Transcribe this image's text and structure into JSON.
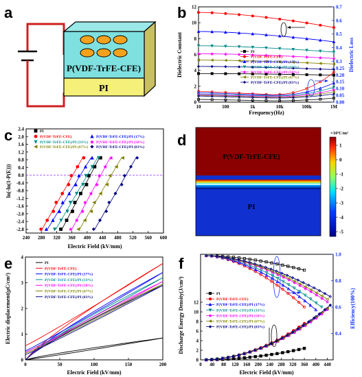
{
  "panels": {
    "a": {
      "label": "a",
      "top_layer": "P(VDF-TrFE-CFE)",
      "bottom_layer": "PI",
      "colors": {
        "top": "#7fe0e0",
        "bottom": "#f5f07a",
        "electrode": "#f4a21e",
        "wire": "#cc2020"
      }
    },
    "b": {
      "label": "b",
      "legend": [
        "PI",
        "P(VDF-TrFE-CFE)",
        "P(VDF-TrFE-CFE)/PI (17%)",
        "P(VDF-TrFE-CFE)/PI (33%)",
        "P(VDF-TrFE-CFE)/PI (50%)",
        "P(VDF-TrFE-CFE)/PI (67%)",
        "P(VDF-TrFE-CFE)/PI (83%)"
      ]
    },
    "c": {
      "label": "c",
      "legend": [
        "PI",
        "P(VDF-TrFE-CFE)",
        "P(VDF-TrFE-CFE)/PI (17%)",
        "P(VDF-TrFE-CFE)/PI (33%)",
        "P(VDF-TrFE-CFE)/PI (50%)",
        "P(VDF-TrFE-CFE)/PI (67%)",
        "P(VDF-TrFE-CFE)/PI (83%)"
      ]
    },
    "d": {
      "label": "d",
      "top_label": "P(VDF-TrFE-CFE)",
      "bottom_label": "PI",
      "colorbar_title": "×10⁷C/m²",
      "colorbar_ticks": [
        "1",
        "0",
        "-1",
        "-2",
        "-3",
        "-4",
        "-5"
      ]
    },
    "e": {
      "label": "e",
      "legend": [
        "PI",
        "P(VDF-TrFE-CFE)",
        "P(VDF-TrFE-CFE)/PI (17%)",
        "P(VDF-TrFE-CFE)/PI (33%)",
        "P(VDF-TrFE-CFE)/PI (50%)",
        "P(VDF-TrFE-CFE)/PI (67%)",
        "P(VDF-TrFE-CFE)/PI (83%)"
      ]
    },
    "f": {
      "label": "f",
      "legend": [
        "PI",
        "P(VDF-TrFE-CFE)",
        "P(VDF-TrFE-CFE)/PI (17%)",
        "P(VDF-TrFE-CFE)/PI (33%)",
        "P(VDF-TrFE-CFE)/PI (50%)",
        "P(VDF-TrFE-CFE)/PI (67%)",
        "P(VDF-TrFE-CFE)/PI (83%)"
      ]
    }
  },
  "series_colors": [
    "#000000",
    "#ff0000",
    "#0000ff",
    "#008b8b",
    "#ff00ff",
    "#808000",
    "#000080"
  ],
  "chart_data": [
    {
      "panel": "b",
      "type": "line",
      "x_scale": "log",
      "xlim": [
        10,
        1000000
      ],
      "xticks": [
        "10",
        "100",
        "1k",
        "10k",
        "100k",
        "1M"
      ],
      "xlabel": "Frequency(Hz)",
      "ylabel": "Dielectric Constant",
      "ylim": [
        0,
        12
      ],
      "yticks": [
        "0",
        "2",
        "4",
        "6",
        "8",
        "10",
        "12"
      ],
      "y2label": "Dielectric Loss",
      "y2lim": [
        0,
        0.7
      ],
      "y2ticks": [
        "0.00",
        "0.05",
        "0.10",
        "0.15",
        "0.20",
        "0.25",
        "0.3",
        "0.4",
        "0.5",
        "0.6",
        "0.7"
      ],
      "constant_series": [
        {
          "name": "PI",
          "y_start": 3.6,
          "y_end": 3.4
        },
        {
          "name": "P(VDF-TrFE-CFE)",
          "y_start": 11.3,
          "y_end": 9.4
        },
        {
          "name": "P(VDF-TrFE-CFE)/PI (17%)",
          "y_start": 8.9,
          "y_end": 7.6
        },
        {
          "name": "P(VDF-TrFE-CFE)/PI (33%)",
          "y_start": 7.1,
          "y_end": 6.3
        },
        {
          "name": "P(VDF-TrFE-CFE)/PI (50%)",
          "y_start": 6.1,
          "y_end": 5.5
        },
        {
          "name": "P(VDF-TrFE-CFE)/PI (67%)",
          "y_start": 5.3,
          "y_end": 4.8
        },
        {
          "name": "P(VDF-TrFE-CFE)/PI (83%)",
          "y_start": 4.5,
          "y_end": 4.1
        }
      ],
      "loss_series": [
        {
          "name": "PI",
          "y_start": 0.02,
          "y_min": 0.01,
          "y_end": 0.03
        },
        {
          "name": "P(VDF-TrFE-CFE)",
          "y_start": 0.08,
          "y_min": 0.055,
          "y_end": 0.22
        },
        {
          "name": "P(VDF-TrFE-CFE)/PI (17%)",
          "y_start": 0.07,
          "y_min": 0.05,
          "y_end": 0.14
        },
        {
          "name": "P(VDF-TrFE-CFE)/PI (33%)",
          "y_start": 0.06,
          "y_min": 0.045,
          "y_end": 0.11
        },
        {
          "name": "P(VDF-TrFE-CFE)/PI (50%)",
          "y_start": 0.055,
          "y_min": 0.04,
          "y_end": 0.09
        },
        {
          "name": "P(VDF-TrFE-CFE)/PI (67%)",
          "y_start": 0.05,
          "y_min": 0.035,
          "y_end": 0.075
        },
        {
          "name": "P(VDF-TrFE-CFE)/PI (83%)",
          "y_start": 0.045,
          "y_min": 0.03,
          "y_end": 0.06
        }
      ]
    },
    {
      "panel": "c",
      "type": "scatter",
      "xlabel": "Electric Field (kV/mm)",
      "ylabel": "ln(-ln(1-P(E)))",
      "xlim": [
        240,
        600
      ],
      "xticks": [
        "240",
        "280",
        "320",
        "360",
        "400",
        "440",
        "480",
        "520",
        "560",
        "600"
      ],
      "ylim": [
        -3.0,
        2.4
      ],
      "yticks": [
        "2.4",
        "2.0",
        "1.6",
        "1.2",
        "0.8",
        "0.4",
        "0.0",
        "-0.4",
        "-0.8",
        "-1.2",
        "-1.6",
        "-2.0",
        "-2.4",
        "-2.8"
      ],
      "series": [
        {
          "name": "PI",
          "x_start": 334,
          "x_end": 432
        },
        {
          "name": "P(VDF-TrFE-CFE)",
          "x_start": 282,
          "x_end": 388
        },
        {
          "name": "P(VDF-TrFE-CFE)/PI (17%)",
          "x_start": 296,
          "x_end": 410
        },
        {
          "name": "P(VDF-TrFE-CFE)/PI (33%)",
          "x_start": 318,
          "x_end": 427
        },
        {
          "name": "P(VDF-TrFE-CFE)/PI (50%)",
          "x_start": 360,
          "x_end": 460
        },
        {
          "name": "P(VDF-TrFE-CFE)/PI (67%)",
          "x_start": 380,
          "x_end": 490
        },
        {
          "name": "P(VDF-TrFE-CFE)/PI (83%)",
          "x_start": 420,
          "x_end": 528
        }
      ]
    },
    {
      "panel": "e",
      "type": "line",
      "xlabel": "Electric Field (kV/mm)",
      "ylabel": "Electric displacement(μC/cm²)",
      "xlim": [
        0,
        200
      ],
      "xticks": [
        "0",
        "50",
        "100",
        "150",
        "200"
      ],
      "ylim": [
        0,
        4
      ],
      "yticks": [
        "0",
        "1",
        "2",
        "3",
        "4"
      ],
      "loops": [
        {
          "name": "PI",
          "d_max": 0.85,
          "d_rem": 0.0
        },
        {
          "name": "P(VDF-TrFE-CFE)",
          "d_max": 3.75,
          "d_rem": 0.55
        },
        {
          "name": "P(VDF-TrFE-CFE)/PI (17%)",
          "d_max": 3.4,
          "d_rem": 0.35
        },
        {
          "name": "P(VDF-TrFE-CFE)/PI (33%)",
          "d_max": 3.2,
          "d_rem": 0.3
        },
        {
          "name": "P(VDF-TrFE-CFE)/PI (50%)",
          "d_max": 3.05,
          "d_rem": 0.3
        },
        {
          "name": "P(VDF-TrFE-CFE)/PI (67%)",
          "d_max": 2.95,
          "d_rem": 0.25
        },
        {
          "name": "P(VDF-TrFE-CFE)/PI (83%)",
          "d_max": 2.9,
          "d_rem": 0.2
        }
      ]
    },
    {
      "panel": "f",
      "type": "line",
      "xlabel": "Electric Field (kV/mm)",
      "ylabel": "Discharge Energy Density(J/cm³)",
      "y2label": "Efficiency(100%)",
      "xlim": [
        0,
        460
      ],
      "xticks": [
        "0",
        "40",
        "80",
        "120",
        "160",
        "200",
        "240",
        "280",
        "320",
        "360",
        "400",
        "440"
      ],
      "ylim": [
        0,
        22
      ],
      "yticks": [
        "0",
        "2",
        "4",
        "6",
        "8",
        "10",
        "12"
      ],
      "y2lim": [
        0.2,
        1.0
      ],
      "y2ticks": [
        "0.4",
        "0.6",
        "0.8",
        "1.0"
      ],
      "energy_series": [
        {
          "name": "PI",
          "x_max": 360,
          "u_max": 2.4
        },
        {
          "name": "P(VDF-TrFE-CFE)",
          "x_max": 360,
          "u_max": 7.6
        },
        {
          "name": "P(VDF-TrFE-CFE)/PI (17%)",
          "x_max": 400,
          "u_max": 9.0
        },
        {
          "name": "P(VDF-TrFE-CFE)/PI (33%)",
          "x_max": 420,
          "u_max": 9.6
        },
        {
          "name": "P(VDF-TrFE-CFE)/PI (50%)",
          "x_max": 440,
          "u_max": 10.5
        },
        {
          "name": "P(VDF-TrFE-CFE)/PI (67%)",
          "x_max": 440,
          "u_max": 10.8
        },
        {
          "name": "P(VDF-TrFE-CFE)/PI (83%)",
          "x_max": 450,
          "u_max": 11.4
        }
      ],
      "efficiency_series": [
        {
          "name": "PI",
          "x_max": 360,
          "eta_end": 0.88
        },
        {
          "name": "P(VDF-TrFE-CFE)",
          "x_max": 360,
          "eta_end": 0.6
        },
        {
          "name": "P(VDF-TrFE-CFE)/PI (17%)",
          "x_max": 400,
          "eta_end": 0.58
        },
        {
          "name": "P(VDF-TrFE-CFE)/PI (33%)",
          "x_max": 420,
          "eta_end": 0.6
        },
        {
          "name": "P(VDF-TrFE-CFE)/PI (50%)",
          "x_max": 440,
          "eta_end": 0.64
        },
        {
          "name": "P(VDF-TrFE-CFE)/PI (67%)",
          "x_max": 440,
          "eta_end": 0.66
        },
        {
          "name": "P(VDF-TrFE-CFE)/PI (83%)",
          "x_max": 450,
          "eta_end": 0.68
        }
      ]
    }
  ]
}
